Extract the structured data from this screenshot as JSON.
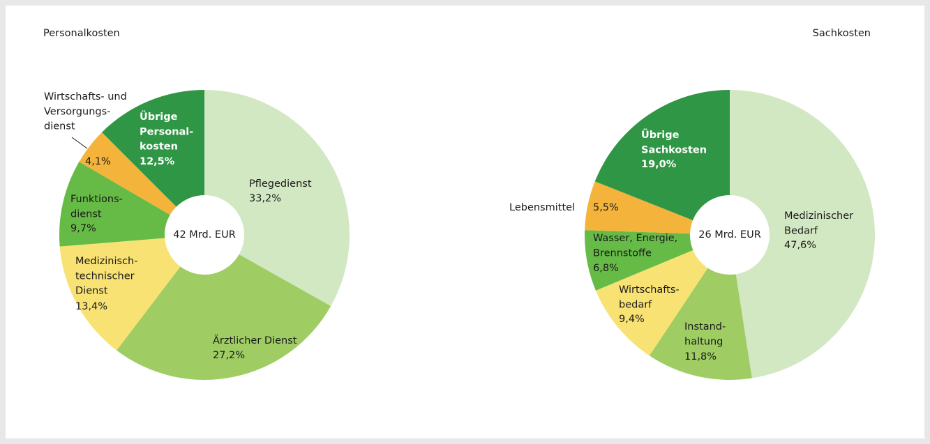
{
  "chart_data": [
    {
      "type": "donut",
      "title": "Personalkosten",
      "center_label": "42 Mrd. EUR",
      "categories": [
        [
          "Pflegedienst"
        ],
        [
          "Ärztlicher Dienst"
        ],
        [
          "Medizinisch-",
          "technischer",
          "Dienst"
        ],
        [
          "Funktions-",
          "dienst"
        ],
        [
          "Wirtschafts- und",
          "Versorgungs-",
          "dienst"
        ],
        [
          "Übrige",
          "Personal-",
          "kosten"
        ]
      ],
      "values": [
        33.2,
        27.2,
        13.4,
        9.7,
        4.1,
        12.5
      ],
      "value_labels": [
        "33,2%",
        "27,2%",
        "13,4%",
        "9,7%",
        "4,1%",
        "12,5%"
      ],
      "colors": [
        "#d2e8c2",
        "#9fcd64",
        "#f8e273",
        "#66bb47",
        "#f4b43c",
        "#2e9645"
      ]
    },
    {
      "type": "donut",
      "title": "Sachkosten",
      "center_label": "26 Mrd. EUR",
      "categories": [
        [
          "Medizinischer",
          "Bedarf"
        ],
        [
          "Instand-",
          "haltung"
        ],
        [
          "Wirtschafts-",
          "bedarf"
        ],
        [
          "Wasser, Energie,",
          "Brennstoffe"
        ],
        [
          "Lebensmittel"
        ],
        [
          "Übrige",
          "Sachkosten"
        ]
      ],
      "values": [
        47.6,
        11.8,
        9.4,
        6.8,
        5.5,
        19.0
      ],
      "value_labels": [
        "47,6%",
        "11,8%",
        "9,4%",
        "6,8%",
        "5,5%",
        "19,0%"
      ],
      "colors": [
        "#d2e8c2",
        "#9fcd64",
        "#f8e273",
        "#66bb47",
        "#f4b43c",
        "#2e9645"
      ]
    }
  ]
}
